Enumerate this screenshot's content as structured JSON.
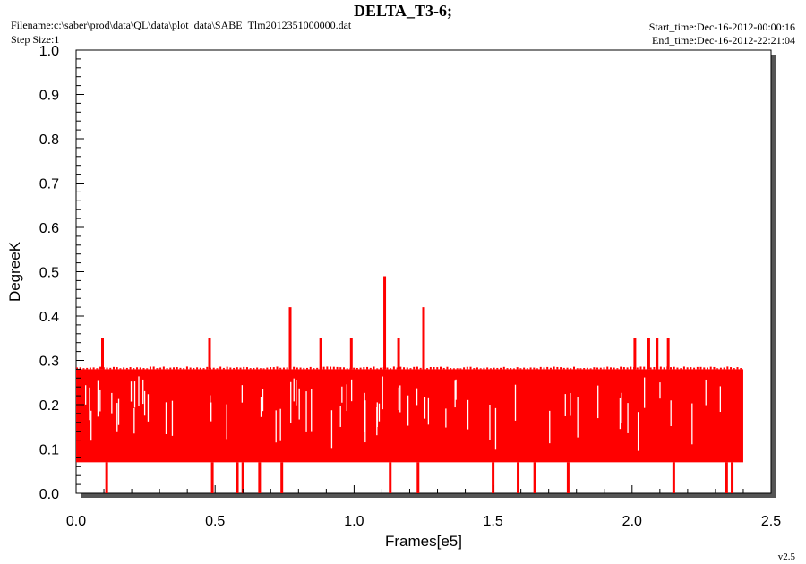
{
  "header": {
    "title": "DELTA_T3-6;",
    "filename": "Filename:c:\\saber\\prod\\data\\QL\\data\\plot_data\\SABE_Tlm2012351000000.dat",
    "step_size": "Step Size:1",
    "start_time": "Start_time:Dec-16-2012-00:00:16",
    "end_time": "End_time:Dec-16-2012-22:21:04"
  },
  "version": "v2.5",
  "chart_data": {
    "type": "line",
    "title": "DELTA_T3-6;",
    "xlabel": "Frames[e5]",
    "ylabel": "DegreeK",
    "xlim": [
      0.0,
      2.5
    ],
    "ylim": [
      0.0,
      1.0
    ],
    "x_ticks": [
      "0.0",
      "0.5",
      "1.0",
      "1.5",
      "2.0",
      "2.5"
    ],
    "y_ticks": [
      "0.0",
      "0.1",
      "0.2",
      "0.3",
      "0.4",
      "0.5",
      "0.6",
      "0.7",
      "0.8",
      "0.9",
      "1.0"
    ],
    "series_color": "#ff0000",
    "series": [
      {
        "x_range": [
          0.0,
          2.4
        ],
        "band_low": 0.07,
        "band_high": 0.28,
        "spikes": [
          {
            "x": 0.095,
            "y": 0.35
          },
          {
            "x": 0.48,
            "y": 0.35
          },
          {
            "x": 0.77,
            "y": 0.42
          },
          {
            "x": 0.88,
            "y": 0.35
          },
          {
            "x": 0.99,
            "y": 0.35
          },
          {
            "x": 1.11,
            "y": 0.49
          },
          {
            "x": 1.16,
            "y": 0.35
          },
          {
            "x": 1.25,
            "y": 0.42
          },
          {
            "x": 2.01,
            "y": 0.35
          },
          {
            "x": 2.06,
            "y": 0.35
          },
          {
            "x": 2.09,
            "y": 0.35
          },
          {
            "x": 2.13,
            "y": 0.35
          }
        ],
        "dips": [
          {
            "x": 0.11,
            "y": 0.0
          },
          {
            "x": 0.49,
            "y": 0.0
          },
          {
            "x": 0.58,
            "y": 0.0
          },
          {
            "x": 0.6,
            "y": 0.0
          },
          {
            "x": 0.66,
            "y": 0.0
          },
          {
            "x": 0.74,
            "y": 0.0
          },
          {
            "x": 1.13,
            "y": 0.0
          },
          {
            "x": 1.23,
            "y": 0.0
          },
          {
            "x": 1.5,
            "y": 0.0
          },
          {
            "x": 1.59,
            "y": 0.0
          },
          {
            "x": 1.65,
            "y": 0.0
          },
          {
            "x": 1.77,
            "y": 0.0
          },
          {
            "x": 2.15,
            "y": 0.0
          },
          {
            "x": 2.34,
            "y": 0.0
          },
          {
            "x": 2.36,
            "y": 0.0
          }
        ]
      }
    ]
  }
}
